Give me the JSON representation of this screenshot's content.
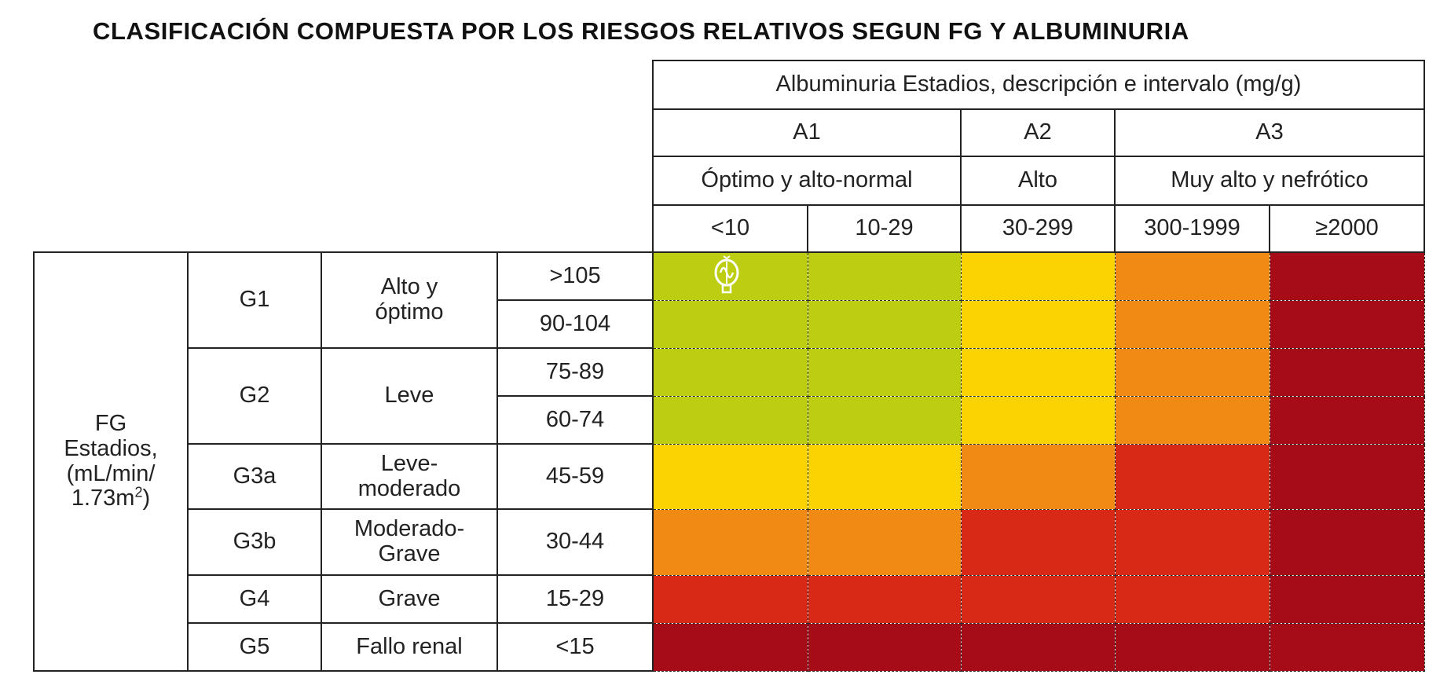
{
  "title": "CLASIFICACIÓN COMPUESTA POR LOS RIESGOS RELATIVOS SEGUN FG Y ALBUMINURIA",
  "albuminuria": {
    "header": "Albuminuria Estadios, descripción e intervalo (mg/g)",
    "stages": [
      {
        "code": "A1",
        "description": "Óptimo y alto-normal",
        "ranges": [
          "<10",
          "10-29"
        ]
      },
      {
        "code": "A2",
        "description": "Alto",
        "ranges": [
          "30-299"
        ]
      },
      {
        "code": "A3",
        "description": "Muy alto y nefrótico",
        "ranges": [
          "300-1999",
          "≥2000"
        ]
      }
    ]
  },
  "fg": {
    "label_line1": "FG",
    "label_line2": "Estadios,",
    "label_line3": "(mL/min/",
    "label_line4": "1.73m",
    "label_sup": "2",
    "label_close": ")",
    "stages": [
      {
        "code": "G1",
        "description_line1": "Alto y",
        "description_line2": "óptimo",
        "ranges": [
          ">105",
          "90-104"
        ]
      },
      {
        "code": "G2",
        "description_line1": "Leve",
        "description_line2": "",
        "ranges": [
          "75-89",
          "60-74"
        ]
      },
      {
        "code": "G3a",
        "description_line1": "Leve-",
        "description_line2": "moderado",
        "ranges": [
          "45-59"
        ]
      },
      {
        "code": "G3b",
        "description_line1": "Moderado-",
        "description_line2": "Grave",
        "ranges": [
          "30-44"
        ]
      },
      {
        "code": "G4",
        "description_line1": "Grave",
        "description_line2": "",
        "ranges": [
          "15-29"
        ]
      },
      {
        "code": "G5",
        "description_line1": "Fallo renal",
        "description_line2": "",
        "ranges": [
          "<15"
        ]
      }
    ]
  },
  "risk_colors": {
    "green": "#bccd12",
    "yellow": "#fcd302",
    "orange": "#f08a14",
    "red": "#d72916",
    "dark_red": "#a60c17"
  },
  "risk_matrix": [
    [
      "green",
      "green",
      "yellow",
      "orange",
      "dark_red"
    ],
    [
      "green",
      "green",
      "yellow",
      "orange",
      "dark_red"
    ],
    [
      "green",
      "green",
      "yellow",
      "orange",
      "dark_red"
    ],
    [
      "green",
      "green",
      "yellow",
      "orange",
      "dark_red"
    ],
    [
      "yellow",
      "yellow",
      "orange",
      "red",
      "dark_red"
    ],
    [
      "orange",
      "orange",
      "red",
      "red",
      "dark_red"
    ],
    [
      "red",
      "red",
      "red",
      "red",
      "dark_red"
    ],
    [
      "dark_red",
      "dark_red",
      "dark_red",
      "dark_red",
      "dark_red"
    ]
  ],
  "cursor_icon": "grab-hand-cursor"
}
